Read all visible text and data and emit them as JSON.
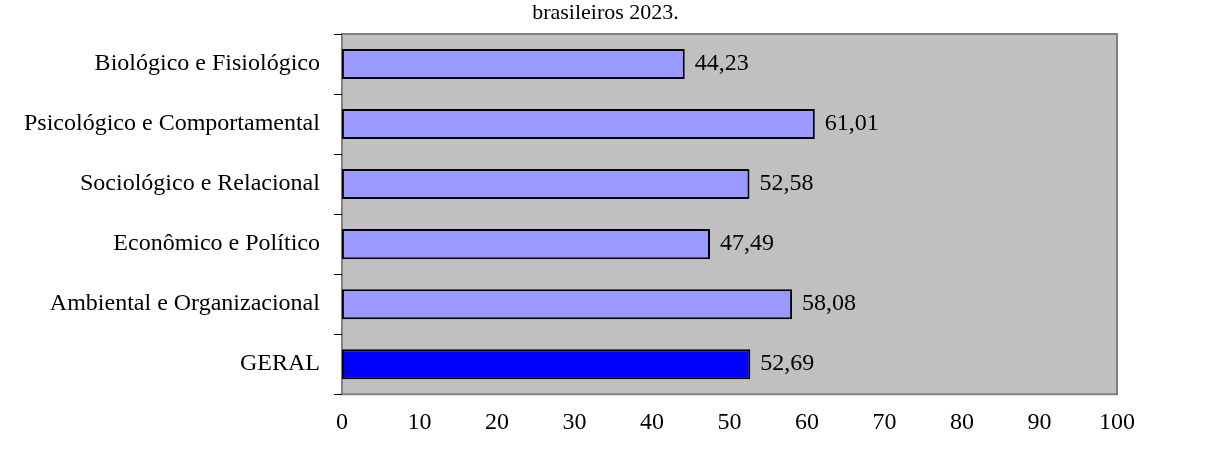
{
  "chart_data": {
    "type": "bar",
    "orientation": "horizontal",
    "title": "brasileiros 2023.",
    "categories": [
      "Biológico e Fisiológico",
      "Psicológico e Comportamental",
      "Sociológico e Relacional",
      "Econômico e Político",
      "Ambiental e Organizacional",
      "GERAL"
    ],
    "values": [
      44.23,
      61.01,
      52.58,
      47.49,
      58.08,
      52.69
    ],
    "colors": [
      "#9999ff",
      "#9999ff",
      "#9999ff",
      "#9999ff",
      "#9999ff",
      "#0000ff"
    ],
    "value_labels": [
      "44,23",
      "61,01",
      "52,58",
      "47,49",
      "58,08",
      "52,69"
    ],
    "xlim": [
      0,
      100
    ],
    "xticks": [
      0,
      10,
      20,
      30,
      40,
      50,
      60,
      70,
      80,
      90,
      100
    ],
    "grid": false,
    "legend": false
  }
}
